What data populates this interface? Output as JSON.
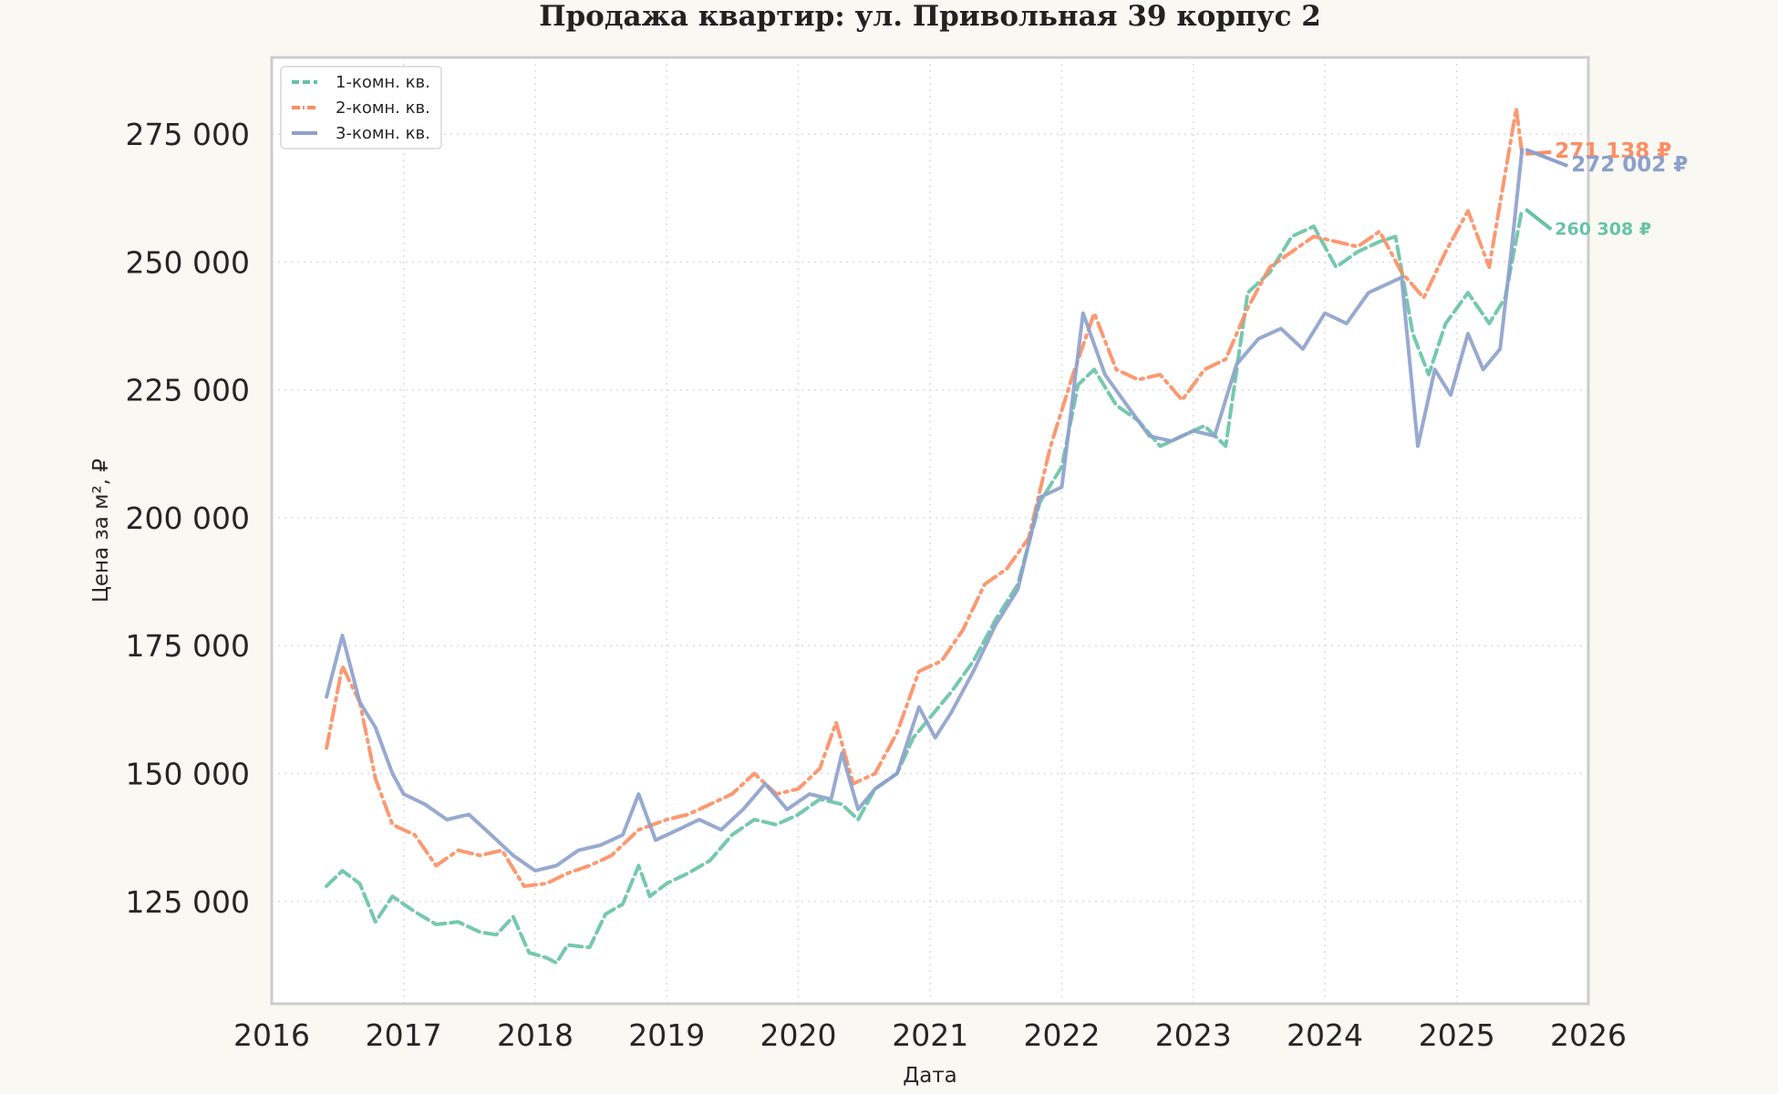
{
  "chart_data": {
    "type": "line",
    "title": "Продажа квартир: ул. Привольная 39 корпус 2",
    "xlabel": "Дата",
    "ylabel": "Цена за м², ₽",
    "x_range": [
      "2016-01-01",
      "2026-01-01"
    ],
    "ylim": [
      105000,
      290000
    ],
    "x_ticks": [
      "2016",
      "2017",
      "2018",
      "2019",
      "2020",
      "2021",
      "2022",
      "2023",
      "2024",
      "2025",
      "2026"
    ],
    "y_ticks": [
      {
        "value": 125000,
        "label": "125 000"
      },
      {
        "value": 150000,
        "label": "150 000"
      },
      {
        "value": 175000,
        "label": "175 000"
      },
      {
        "value": 200000,
        "label": "200 000"
      },
      {
        "value": 225000,
        "label": "225 000"
      },
      {
        "value": 250000,
        "label": "250 000"
      },
      {
        "value": 275000,
        "label": "275 000"
      }
    ],
    "grid": true,
    "legend_position": "top-left",
    "series": [
      {
        "name": "1-комн. кв.",
        "color": "#66c2a5",
        "style": "dashed",
        "end_label": "260 308 ₽",
        "end_value": 260308,
        "points": [
          [
            "2016-06-01",
            128000
          ],
          [
            "2016-07-15",
            131000
          ],
          [
            "2016-09-01",
            128500
          ],
          [
            "2016-10-15",
            121000
          ],
          [
            "2016-12-01",
            126000
          ],
          [
            "2017-02-01",
            123000
          ],
          [
            "2017-04-01",
            120500
          ],
          [
            "2017-06-01",
            121000
          ],
          [
            "2017-08-01",
            119000
          ],
          [
            "2017-09-15",
            118500
          ],
          [
            "2017-11-01",
            122000
          ],
          [
            "2017-12-15",
            115000
          ],
          [
            "2018-02-01",
            114000
          ],
          [
            "2018-03-01",
            113000
          ],
          [
            "2018-04-01",
            116500
          ],
          [
            "2018-06-01",
            116000
          ],
          [
            "2018-07-15",
            122500
          ],
          [
            "2018-09-01",
            124500
          ],
          [
            "2018-10-15",
            132000
          ],
          [
            "2018-11-15",
            126000
          ],
          [
            "2019-01-01",
            128500
          ],
          [
            "2019-03-01",
            130500
          ],
          [
            "2019-05-01",
            133000
          ],
          [
            "2019-07-01",
            138000
          ],
          [
            "2019-09-01",
            141000
          ],
          [
            "2019-11-01",
            140000
          ],
          [
            "2020-01-01",
            142000
          ],
          [
            "2020-03-01",
            145000
          ],
          [
            "2020-05-01",
            144000
          ],
          [
            "2020-06-15",
            141000
          ],
          [
            "2020-08-01",
            147000
          ],
          [
            "2020-10-01",
            150000
          ],
          [
            "2020-11-15",
            157000
          ],
          [
            "2021-01-01",
            161000
          ],
          [
            "2021-03-01",
            166000
          ],
          [
            "2021-05-01",
            172000
          ],
          [
            "2021-07-01",
            180000
          ],
          [
            "2021-09-01",
            187000
          ],
          [
            "2021-11-01",
            203000
          ],
          [
            "2022-01-01",
            210000
          ],
          [
            "2022-02-15",
            226000
          ],
          [
            "2022-04-01",
            229000
          ],
          [
            "2022-06-01",
            222000
          ],
          [
            "2022-08-01",
            219000
          ],
          [
            "2022-10-01",
            214000
          ],
          [
            "2022-12-01",
            216000
          ],
          [
            "2023-02-01",
            218000
          ],
          [
            "2023-04-01",
            214000
          ],
          [
            "2023-06-01",
            244000
          ],
          [
            "2023-08-01",
            248000
          ],
          [
            "2023-10-01",
            255000
          ],
          [
            "2023-12-01",
            257000
          ],
          [
            "2024-02-01",
            249000
          ],
          [
            "2024-04-01",
            252000
          ],
          [
            "2024-06-01",
            254000
          ],
          [
            "2024-07-15",
            255000
          ],
          [
            "2024-09-01",
            236000
          ],
          [
            "2024-10-15",
            228000
          ],
          [
            "2024-12-01",
            238000
          ],
          [
            "2025-02-01",
            244000
          ],
          [
            "2025-04-01",
            238000
          ],
          [
            "2025-05-15",
            243000
          ],
          [
            "2025-07-01",
            260308
          ]
        ]
      },
      {
        "name": "2-комн. кв.",
        "color": "#fc8d62",
        "style": "dashdot",
        "end_label": "271 138 ₽",
        "end_value": 271138,
        "points": [
          [
            "2016-06-01",
            155000
          ],
          [
            "2016-07-15",
            171000
          ],
          [
            "2016-09-01",
            164000
          ],
          [
            "2016-10-15",
            149000
          ],
          [
            "2016-12-01",
            140000
          ],
          [
            "2017-02-01",
            138000
          ],
          [
            "2017-04-01",
            132000
          ],
          [
            "2017-06-01",
            135000
          ],
          [
            "2017-08-01",
            134000
          ],
          [
            "2017-10-01",
            135000
          ],
          [
            "2017-12-01",
            128000
          ],
          [
            "2018-02-01",
            128500
          ],
          [
            "2018-04-01",
            130500
          ],
          [
            "2018-06-01",
            132000
          ],
          [
            "2018-08-01",
            134000
          ],
          [
            "2018-10-15",
            139000
          ],
          [
            "2019-01-01",
            141000
          ],
          [
            "2019-03-01",
            142000
          ],
          [
            "2019-05-01",
            144000
          ],
          [
            "2019-07-01",
            146000
          ],
          [
            "2019-09-01",
            150000
          ],
          [
            "2019-11-01",
            146000
          ],
          [
            "2020-01-01",
            147000
          ],
          [
            "2020-03-01",
            151000
          ],
          [
            "2020-04-15",
            160000
          ],
          [
            "2020-06-01",
            148000
          ],
          [
            "2020-08-01",
            150000
          ],
          [
            "2020-10-01",
            158000
          ],
          [
            "2020-12-01",
            170000
          ],
          [
            "2021-02-01",
            172000
          ],
          [
            "2021-04-01",
            178000
          ],
          [
            "2021-06-01",
            187000
          ],
          [
            "2021-08-01",
            190000
          ],
          [
            "2021-10-01",
            196000
          ],
          [
            "2021-12-01",
            214000
          ],
          [
            "2022-02-01",
            228000
          ],
          [
            "2022-04-01",
            240000
          ],
          [
            "2022-06-01",
            229000
          ],
          [
            "2022-08-01",
            227000
          ],
          [
            "2022-10-01",
            228000
          ],
          [
            "2022-12-01",
            223000
          ],
          [
            "2023-02-01",
            229000
          ],
          [
            "2023-04-01",
            231000
          ],
          [
            "2023-06-01",
            241000
          ],
          [
            "2023-08-01",
            249000
          ],
          [
            "2023-10-01",
            252000
          ],
          [
            "2023-12-01",
            255000
          ],
          [
            "2024-02-01",
            254000
          ],
          [
            "2024-04-01",
            253000
          ],
          [
            "2024-06-01",
            256000
          ],
          [
            "2024-08-01",
            248000
          ],
          [
            "2024-10-01",
            243000
          ],
          [
            "2024-12-01",
            252000
          ],
          [
            "2025-02-01",
            260000
          ],
          [
            "2025-04-01",
            249000
          ],
          [
            "2025-06-15",
            280000
          ],
          [
            "2025-07-01",
            271138
          ]
        ]
      },
      {
        "name": "3-комн. кв.",
        "color": "#8da0cb",
        "style": "solid",
        "end_label": "272 002 ₽",
        "end_value": 272002,
        "points": [
          [
            "2016-06-01",
            165000
          ],
          [
            "2016-07-15",
            177000
          ],
          [
            "2016-09-01",
            164000
          ],
          [
            "2016-10-15",
            159000
          ],
          [
            "2016-12-01",
            150000
          ],
          [
            "2017-01-01",
            146000
          ],
          [
            "2017-03-01",
            144000
          ],
          [
            "2017-05-01",
            141000
          ],
          [
            "2017-07-01",
            142000
          ],
          [
            "2017-09-01",
            138000
          ],
          [
            "2017-11-01",
            134000
          ],
          [
            "2018-01-01",
            131000
          ],
          [
            "2018-03-01",
            132000
          ],
          [
            "2018-05-01",
            135000
          ],
          [
            "2018-07-01",
            136000
          ],
          [
            "2018-09-01",
            138000
          ],
          [
            "2018-10-15",
            146000
          ],
          [
            "2018-12-01",
            137000
          ],
          [
            "2019-02-01",
            139000
          ],
          [
            "2019-04-01",
            141000
          ],
          [
            "2019-06-01",
            139000
          ],
          [
            "2019-08-01",
            143000
          ],
          [
            "2019-10-01",
            148000
          ],
          [
            "2019-12-01",
            143000
          ],
          [
            "2020-02-01",
            146000
          ],
          [
            "2020-04-01",
            145000
          ],
          [
            "2020-05-01",
            154000
          ],
          [
            "2020-06-15",
            143000
          ],
          [
            "2020-08-01",
            147000
          ],
          [
            "2020-10-01",
            150000
          ],
          [
            "2020-12-01",
            163000
          ],
          [
            "2021-01-15",
            157000
          ],
          [
            "2021-03-01",
            162000
          ],
          [
            "2021-05-01",
            170000
          ],
          [
            "2021-07-01",
            179000
          ],
          [
            "2021-09-01",
            186000
          ],
          [
            "2021-11-01",
            204000
          ],
          [
            "2022-01-01",
            206000
          ],
          [
            "2022-03-01",
            240000
          ],
          [
            "2022-05-01",
            228000
          ],
          [
            "2022-07-01",
            222000
          ],
          [
            "2022-09-01",
            216000
          ],
          [
            "2022-11-01",
            215000
          ],
          [
            "2023-01-01",
            217000
          ],
          [
            "2023-03-01",
            216000
          ],
          [
            "2023-05-01",
            230000
          ],
          [
            "2023-07-01",
            235000
          ],
          [
            "2023-09-01",
            237000
          ],
          [
            "2023-11-01",
            233000
          ],
          [
            "2024-01-01",
            240000
          ],
          [
            "2024-03-01",
            238000
          ],
          [
            "2024-05-01",
            244000
          ],
          [
            "2024-07-01",
            246000
          ],
          [
            "2024-08-01",
            247000
          ],
          [
            "2024-09-15",
            214000
          ],
          [
            "2024-11-01",
            229000
          ],
          [
            "2024-12-15",
            224000
          ],
          [
            "2025-02-01",
            236000
          ],
          [
            "2025-03-15",
            229000
          ],
          [
            "2025-05-01",
            233000
          ],
          [
            "2025-06-01",
            252000
          ],
          [
            "2025-07-01",
            272002
          ]
        ]
      }
    ]
  }
}
